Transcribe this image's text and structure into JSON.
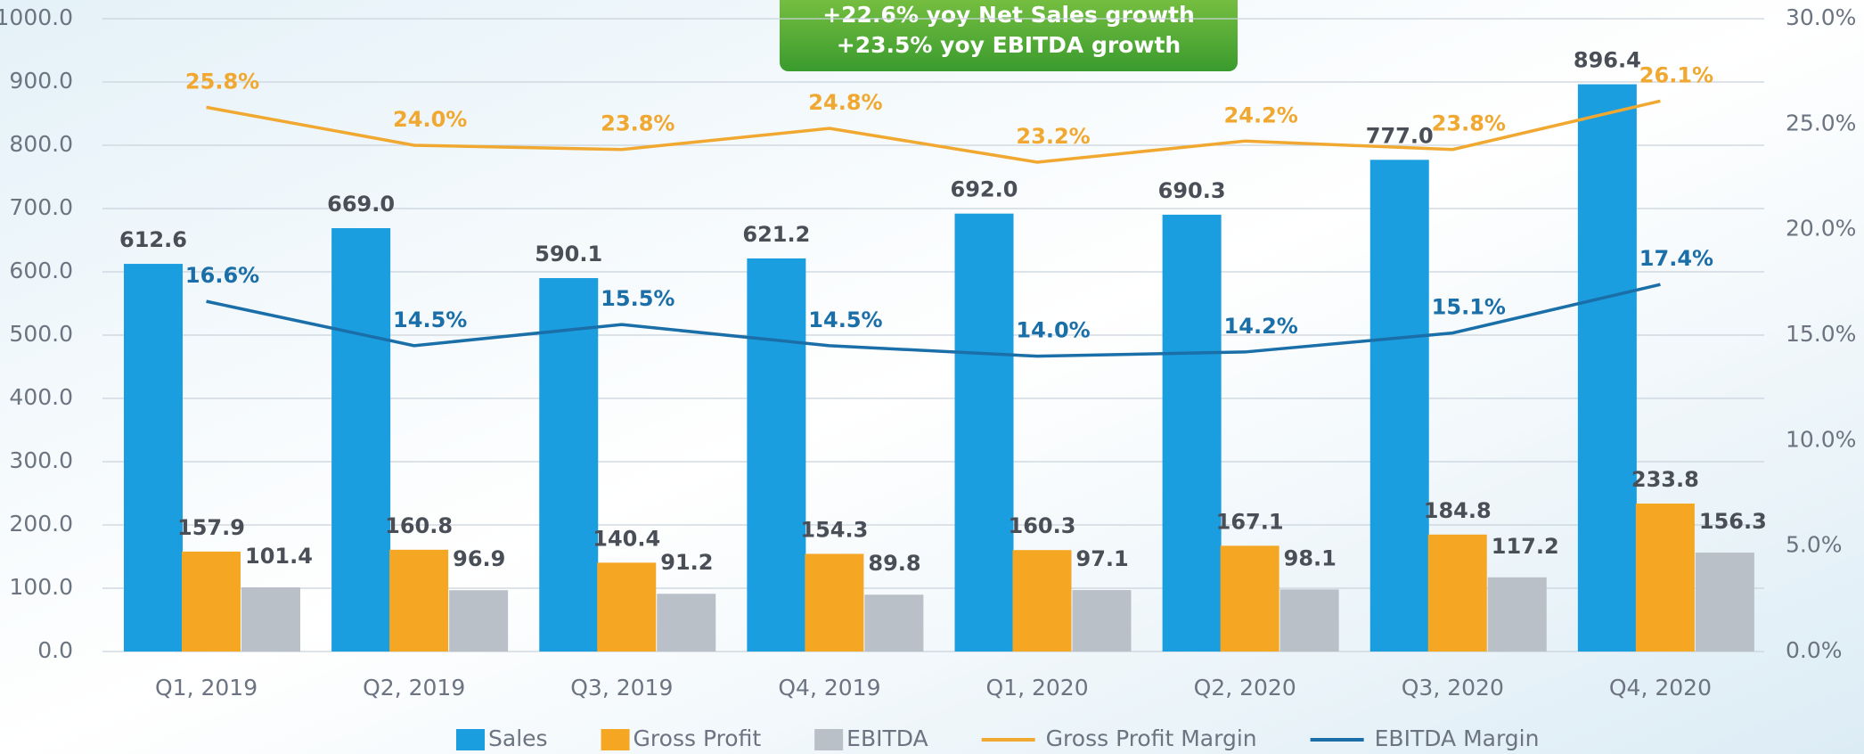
{
  "chart_data": {
    "type": "bar",
    "annotations": [
      "+22.6% yoy Net Sales growth",
      "+23.5% yoy EBITDA growth"
    ],
    "categories": [
      "Q1, 2019",
      "Q2, 2019",
      "Q3, 2019",
      "Q4, 2019",
      "Q1, 2020",
      "Q2, 2020",
      "Q3, 2020",
      "Q4, 2020"
    ],
    "series": [
      {
        "name": "Sales",
        "type": "bar",
        "color": "#1a9ee0",
        "values": [
          612.6,
          669.0,
          590.1,
          621.2,
          692.0,
          690.3,
          777.0,
          896.4
        ],
        "value_labels": [
          "612.6",
          "669.0",
          "590.1",
          "621.2",
          "692.0",
          "690.3",
          "777.0",
          "896.4"
        ]
      },
      {
        "name": "Gross Profit",
        "type": "bar",
        "color": "#f5a623",
        "values": [
          157.9,
          160.8,
          140.4,
          154.3,
          160.3,
          167.1,
          184.8,
          233.8
        ],
        "value_labels": [
          "157.9",
          "160.8",
          "140.4",
          "154.3",
          "160.3",
          "167.1",
          "184.8",
          "233.8"
        ]
      },
      {
        "name": "EBITDA",
        "type": "bar",
        "color": "#b9c0c7",
        "values": [
          101.4,
          96.9,
          91.2,
          89.8,
          97.1,
          98.1,
          117.2,
          156.3
        ],
        "value_labels": [
          "101.4",
          "96.9",
          "91.2",
          "89.8",
          "97.1",
          "98.1",
          "117.2",
          "156.3"
        ]
      },
      {
        "name": "Gross Profit Margin",
        "type": "line",
        "axis": "y2",
        "color": "#f0a830",
        "values": [
          25.8,
          24.0,
          23.8,
          24.8,
          23.2,
          24.2,
          23.8,
          26.1
        ],
        "value_labels": [
          "25.8%",
          "24.0%",
          "23.8%",
          "24.8%",
          "23.2%",
          "24.2%",
          "23.8%",
          "26.1%"
        ]
      },
      {
        "name": "EBITDA Margin",
        "type": "line",
        "axis": "y2",
        "color": "#1a6fa8",
        "values": [
          16.6,
          14.5,
          15.5,
          14.5,
          14.0,
          14.2,
          15.1,
          17.4
        ],
        "value_labels": [
          "16.6%",
          "14.5%",
          "15.5%",
          "14.5%",
          "14.0%",
          "14.2%",
          "15.1%",
          "17.4%"
        ]
      }
    ],
    "ylim": [
      0,
      1000
    ],
    "yticks": [
      {
        "value": 0,
        "label": "0.0"
      },
      {
        "value": 100,
        "label": "100.0"
      },
      {
        "value": 200,
        "label": "200.0"
      },
      {
        "value": 300,
        "label": "300.0"
      },
      {
        "value": 400,
        "label": "400.0"
      },
      {
        "value": 500,
        "label": "500.0"
      },
      {
        "value": 600,
        "label": "600.0"
      },
      {
        "value": 700,
        "label": "700.0"
      },
      {
        "value": 800,
        "label": "800.0"
      },
      {
        "value": 900,
        "label": "900.0"
      },
      {
        "value": 1000,
        "label": "1000.0"
      }
    ],
    "y2lim": [
      0,
      30
    ],
    "y2ticks": [
      {
        "value": 0,
        "label": "0.0%"
      },
      {
        "value": 5,
        "label": "5.0%"
      },
      {
        "value": 10,
        "label": "10.0%"
      },
      {
        "value": 15,
        "label": "15.0%"
      },
      {
        "value": 20,
        "label": "20.0%"
      },
      {
        "value": 25,
        "label": "25.0%"
      },
      {
        "value": 30,
        "label": "30.0%"
      }
    ],
    "grid": true,
    "legend": "bottom"
  }
}
